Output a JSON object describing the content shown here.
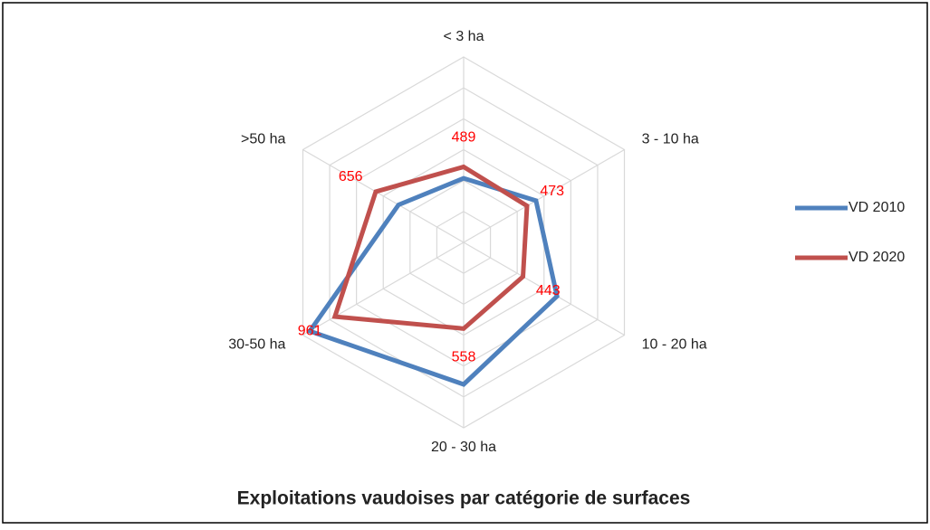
{
  "chart_data": {
    "type": "radar",
    "title": "Exploitations vaudoises par catégorie de surfaces",
    "categories": [
      "< 3 ha",
      "3 - 10 ha",
      "10 - 20 ha",
      "20 - 30 ha",
      "30-50 ha",
      ">50 ha"
    ],
    "series": [
      {
        "name": "VD 2010",
        "color": "#4f81bd",
        "values": [
          415,
          540,
          697,
          919,
          1148,
          486
        ],
        "data_labels": false
      },
      {
        "name": "VD 2020",
        "color": "#c0504d",
        "values": [
          489,
          473,
          443,
          558,
          961,
          656
        ],
        "data_labels": true
      }
    ],
    "ylim": [
      0,
      1200
    ],
    "yticks": [
      0,
      200,
      400,
      600,
      800,
      1000,
      1200
    ],
    "grid": true,
    "legend": "right",
    "data_label_color": "#ff0000"
  }
}
